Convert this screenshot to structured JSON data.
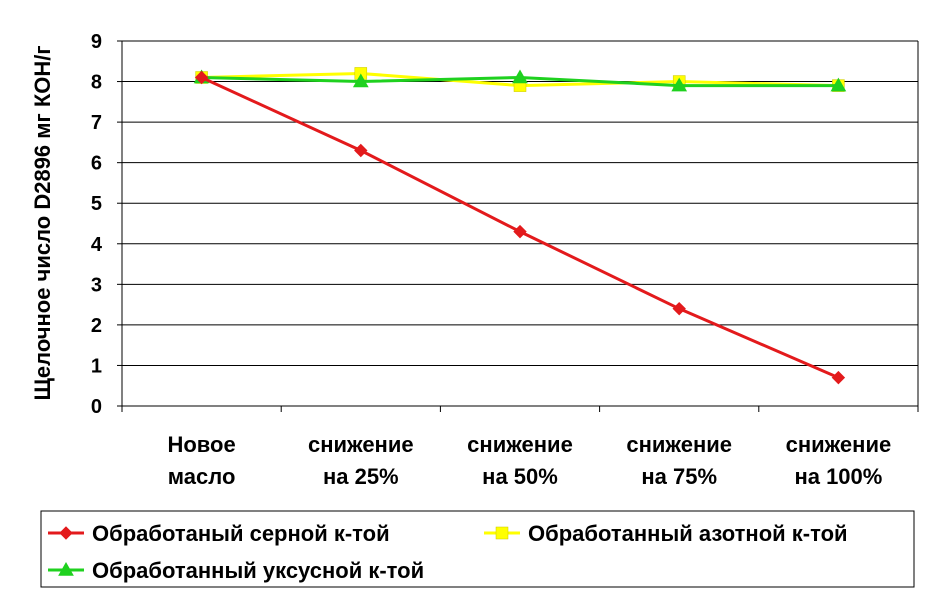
{
  "chart_data": {
    "type": "line",
    "title": "",
    "xlabel": "",
    "ylabel": "Щелочное число D2896 мг КОН/г",
    "ylim": [
      0,
      9
    ],
    "y_ticks": [
      "0",
      "1",
      "2",
      "3",
      "4",
      "5",
      "6",
      "7",
      "8",
      "9"
    ],
    "grid": true,
    "legend_position": "bottom",
    "categories": [
      [
        "Новое",
        "масло"
      ],
      [
        "снижение",
        "на 25%"
      ],
      [
        "снижение",
        "на 50%"
      ],
      [
        "снижение",
        "на 75%"
      ],
      [
        "снижение",
        "на 100%"
      ]
    ],
    "series": [
      {
        "name": "Обработаный серной к-той",
        "color": "#e31a1c",
        "marker": "diamond",
        "values": [
          8.1,
          6.3,
          4.3,
          2.4,
          0.7
        ]
      },
      {
        "name": "Обработанный азотной к-той",
        "color": "#ffff00",
        "marker": "square",
        "values": [
          8.1,
          8.2,
          7.9,
          8.0,
          7.9
        ]
      },
      {
        "name": "Обработанный уксусной к-той",
        "color": "#1fd11f",
        "marker": "triangle",
        "values": [
          8.1,
          8.0,
          8.1,
          7.9,
          7.9
        ]
      }
    ]
  }
}
